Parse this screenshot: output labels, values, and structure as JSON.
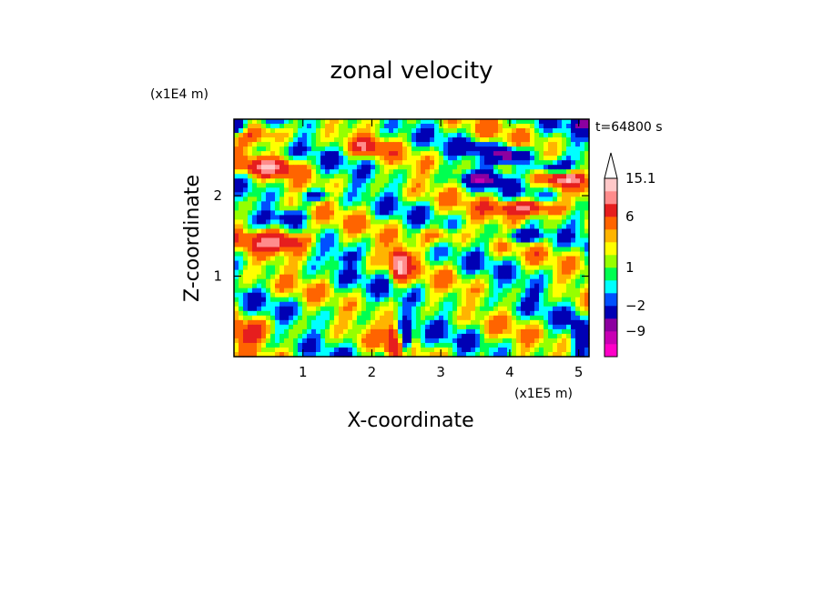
{
  "chart_data": {
    "type": "heatmap",
    "title": "zonal velocity",
    "xlabel": "X-coordinate",
    "ylabel": "Z-coordinate",
    "x_unit_label": "(x1E5 m)",
    "y_unit_label": "(x1E4 m)",
    "time_label": "t=64800 s",
    "xlim": [
      0,
      5.15
    ],
    "ylim": [
      0,
      2.95
    ],
    "x_ticks": [
      1,
      2,
      3,
      4,
      5
    ],
    "y_ticks": [
      1,
      2
    ],
    "colorbar": {
      "colors": [
        "#ff00c8",
        "#c800b4",
        "#8c00a0",
        "#0000b4",
        "#0050ff",
        "#00ffff",
        "#00ff50",
        "#96ff00",
        "#ffff00",
        "#ffb400",
        "#ff6400",
        "#e61e1e",
        "#ff8c8c",
        "#ffc8c8"
      ],
      "labels": [
        "15.1",
        "6",
        "1",
        "−2",
        "−9"
      ],
      "label_levels": [
        15.1,
        6,
        1,
        -2,
        -9
      ],
      "extend_max": true
    },
    "field": {
      "blobs": [
        [
          0.4,
          2.75,
          0.35,
          0.12,
          4
        ],
        [
          1.9,
          2.6,
          0.25,
          0.1,
          5
        ],
        [
          4.0,
          2.5,
          0.25,
          0.09,
          -10
        ],
        [
          3.6,
          2.2,
          0.3,
          0.09,
          -8
        ],
        [
          4.6,
          2.35,
          0.3,
          0.08,
          -6
        ],
        [
          0.5,
          2.35,
          0.4,
          0.1,
          7
        ],
        [
          0.7,
          1.45,
          0.45,
          0.13,
          9
        ],
        [
          2.4,
          1.15,
          0.12,
          0.2,
          11
        ],
        [
          4.3,
          1.85,
          0.5,
          0.1,
          9
        ],
        [
          4.8,
          2.2,
          0.25,
          0.08,
          8
        ],
        [
          0.8,
          1.75,
          0.25,
          0.08,
          -4
        ],
        [
          1.2,
          2.0,
          0.2,
          0.06,
          -5
        ],
        [
          4.2,
          1.5,
          0.3,
          0.08,
          -6
        ],
        [
          1.5,
          0.7,
          0.4,
          0.15,
          -1
        ],
        [
          3.3,
          0.5,
          0.35,
          0.2,
          -1
        ],
        [
          4.4,
          0.8,
          0.3,
          0.2,
          -1
        ],
        [
          2.3,
          0.25,
          0.1,
          0.25,
          6
        ],
        [
          2.5,
          0.2,
          0.08,
          0.2,
          -8
        ],
        [
          0.2,
          0.3,
          0.3,
          0.15,
          5
        ],
        [
          5.0,
          0.25,
          0.1,
          0.2,
          -6
        ],
        [
          1.6,
          1.25,
          0.2,
          0.1,
          -3
        ],
        [
          3.0,
          1.5,
          0.3,
          0.1,
          4
        ],
        [
          0.05,
          2.85,
          0.15,
          0.1,
          -7
        ],
        [
          5.05,
          2.9,
          0.15,
          0.08,
          -7
        ],
        [
          3.5,
          2.6,
          0.3,
          0.08,
          -4
        ]
      ]
    }
  }
}
